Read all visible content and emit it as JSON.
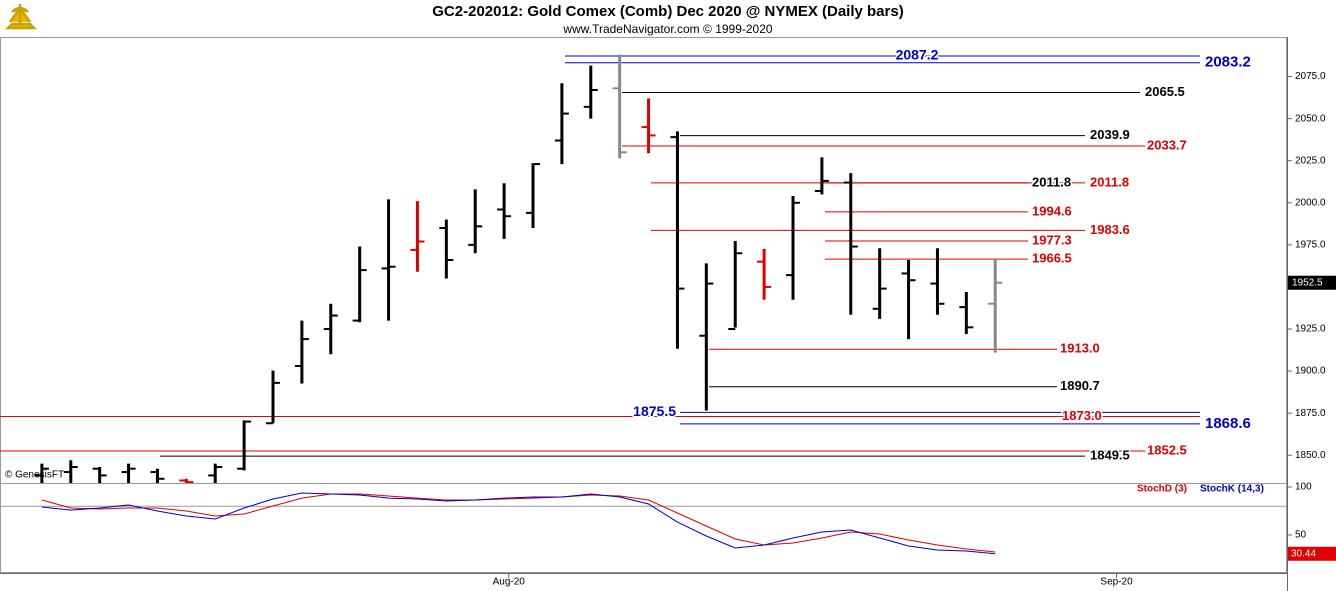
{
  "chart_data": [
    {
      "type": "ohlc",
      "title": "GC2-202012:  Gold Comex (Comb) Dec 2020 @ NYMEX  (Daily bars)",
      "subtitle": "www.TradeNavigator.com © 1999-2020",
      "watermark": "© GenesisFT",
      "categories": [
        null,
        null,
        null,
        null,
        null,
        null,
        null,
        null,
        null,
        null,
        null,
        null,
        null,
        null,
        null,
        null,
        null,
        null,
        null,
        null,
        null,
        null,
        null,
        null,
        null,
        null,
        null,
        null,
        null,
        null,
        null,
        null,
        null,
        null
      ],
      "open": [
        1838,
        1840,
        1842,
        1840,
        1840,
        1835,
        1838,
        1842,
        1869,
        1903,
        1925,
        1930,
        1961,
        1972,
        1985,
        1975,
        1996,
        1994,
        2037,
        2057,
        2068,
        2045,
        2039,
        1921,
        1925,
        1965,
        1957,
        2007,
        2012,
        1937,
        1958,
        1952,
        1938,
        1940
      ],
      "high": [
        1845,
        1847,
        1843,
        1845,
        1842,
        1836,
        1845,
        1870.7,
        1900.3,
        1930,
        1940,
        1974,
        2002,
        2001,
        1990,
        2008,
        2011.6,
        2023.5,
        2071,
        2081.5,
        2088,
        2062,
        2042.4,
        1964,
        1977.3,
        1972.6,
        2004,
        2027,
        2017.6,
        1973,
        1966,
        1973,
        1947,
        1966.6
      ],
      "low": [
        1830,
        1830,
        1830,
        1830,
        1830,
        1830,
        1830,
        1841,
        1869,
        1892.6,
        1910,
        1929,
        1930,
        1959,
        1955,
        1970,
        1978.5,
        1985,
        2023,
        2050,
        2026.4,
        2029.4,
        1913.3,
        1876.6,
        1925.8,
        1942.4,
        1942.4,
        2005,
        1933.5,
        1931,
        1919,
        1933.5,
        1922,
        1911
      ],
      "close": [
        1842,
        1843,
        1838,
        1842,
        1836,
        1834,
        1843,
        1870,
        1893,
        1919,
        1933,
        1960,
        1962,
        1977,
        1966,
        1986,
        1992,
        2023,
        2053,
        2067,
        2030,
        2040,
        1949,
        1952,
        1970,
        1950,
        2000,
        2013,
        1974,
        1949,
        1954,
        1940,
        1926,
        1952.5
      ],
      "colors": [
        "#000",
        "#000",
        "#000",
        "#000",
        "#000",
        "#e00000",
        "#000",
        "#000",
        "#000",
        "#000",
        "#000",
        "#000",
        "#000",
        "#e00000",
        "#000",
        "#000",
        "#000",
        "#000",
        "#000",
        "#000",
        "#888888",
        "#e00000",
        "#000",
        "#000",
        "#000",
        "#e00000",
        "#000",
        "#000",
        "#000",
        "#000",
        "#000",
        "#000",
        "#000",
        "#888888"
      ],
      "xlim": [
        -1.45,
        43.1
      ],
      "ylim": [
        1833.5,
        2098.5
      ],
      "yticks": [
        {
          "value": 1850,
          "label": "1850.0"
        },
        {
          "value": 1875,
          "label": "1875.0"
        },
        {
          "value": 1900,
          "label": "1900.0"
        },
        {
          "value": 1925,
          "label": "1925.0"
        },
        {
          "value": 1950,
          "label": "1950.0"
        },
        {
          "value": 1975,
          "label": "1975.0"
        },
        {
          "value": 2000,
          "label": "2000.0"
        },
        {
          "value": 2025,
          "label": "2025.0"
        },
        {
          "value": 2050,
          "label": "2050.0"
        },
        {
          "value": 2075,
          "label": "2075.0"
        }
      ],
      "levels": [
        {
          "value": 2087.2,
          "label": "2087.2",
          "color": "#0000cc"
        },
        {
          "value": 2083.2,
          "label": "2083.2",
          "color": "#0000cc"
        },
        {
          "value": 2065.5,
          "label": "2065.5",
          "color": "#000000"
        },
        {
          "value": 2039.9,
          "label": "2039.9",
          "color": "#000000"
        },
        {
          "value": 2033.7,
          "label": "2033.7",
          "color": "#e00000"
        },
        {
          "value": 2011.8,
          "label": "2011.8",
          "color": "#000000"
        },
        {
          "value": 2011.8,
          "label": "2011.8",
          "color": "#e00000"
        },
        {
          "value": 1994.6,
          "label": "1994.6",
          "color": "#e00000"
        },
        {
          "value": 1983.6,
          "label": "1983.6",
          "color": "#e00000"
        },
        {
          "value": 1977.3,
          "label": "1977.3",
          "color": "#e00000"
        },
        {
          "value": 1966.5,
          "label": "1966.5",
          "color": "#e00000"
        },
        {
          "value": 1913.0,
          "label": "1913.0",
          "color": "#e00000"
        },
        {
          "value": 1890.7,
          "label": "1890.7",
          "color": "#000000"
        },
        {
          "value": 1875.5,
          "label": "1875.5",
          "color": "#0000cc"
        },
        {
          "value": 1873.0,
          "label": "1873.0",
          "color": "#e00000"
        },
        {
          "value": 1868.6,
          "label": "1868.6",
          "color": "#0000cc"
        },
        {
          "value": 1852.5,
          "label": "1852.5",
          "color": "#e00000"
        },
        {
          "value": 1849.5,
          "label": "1849.5",
          "color": "#000000"
        }
      ]
    },
    {
      "type": "line",
      "xlim": [
        -1.45,
        43.1
      ],
      "ylim": [
        10.4,
        104.2
      ],
      "yticks": [
        100,
        50
      ],
      "ref_lines": [
        80
      ],
      "xticks": [
        {
          "value": 16.16,
          "label": "Aug-20"
        },
        {
          "value": 37.2,
          "label": "Sep-20"
        }
      ],
      "series": [
        {
          "name": "StochD (3)",
          "color": "#e00000",
          "values": [
            86.5,
            78.1,
            77.1,
            78.1,
            78.1,
            75,
            69.8,
            71.9,
            80.2,
            88.5,
            92.7,
            92.7,
            90.6,
            88.5,
            86.5,
            86.5,
            87.5,
            88.5,
            89.6,
            91.7,
            90.6,
            86.5,
            72.9,
            59.4,
            45.8,
            39.6,
            41.7,
            46.9,
            53.1,
            51.0,
            44.8,
            39.6,
            35.4,
            32.3
          ]
        },
        {
          "name": "StochK (14,3)",
          "color": "#0000cc",
          "values": [
            79.2,
            76.0,
            78.1,
            81.3,
            75,
            69.8,
            66.7,
            78.1,
            87.5,
            93.8,
            92.7,
            91.7,
            88.5,
            87.5,
            85.4,
            86.5,
            88.5,
            89.6,
            89.6,
            92.7,
            89.6,
            82.3,
            63.5,
            49.0,
            36.5,
            39.6,
            46.9,
            53.1,
            55.2,
            46.9,
            38.5,
            34.4,
            33.3,
            30.44
          ]
        }
      ]
    }
  ]
}
